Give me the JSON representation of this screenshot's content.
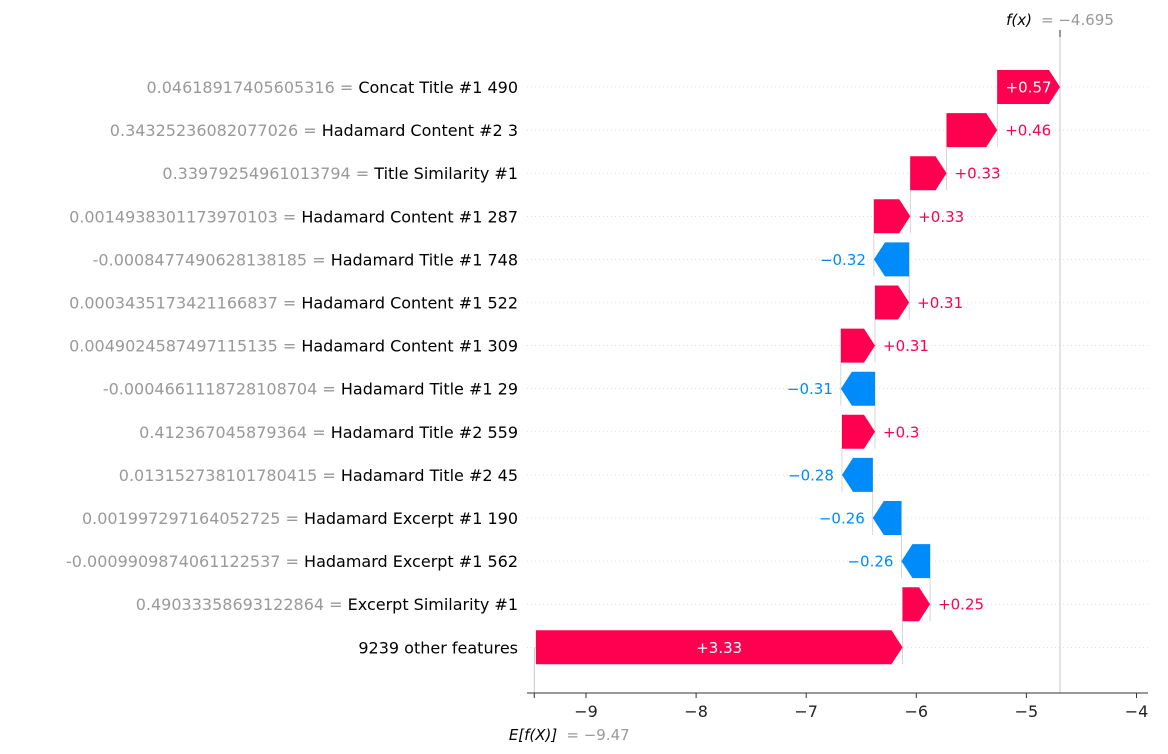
{
  "chart_data": {
    "type": "waterfall",
    "base_value": -9.47,
    "base_value_label": "= −9.47",
    "base_value_prefix": "E[f(X)]",
    "output_value": -4.695,
    "output_value_label": "= −4.695",
    "output_value_prefix": "f(x)",
    "xlim": [
      -9.5,
      -3.9
    ],
    "xticks": [
      -9,
      -8,
      -7,
      -6,
      -5,
      -4
    ],
    "xtick_labels": [
      "−9",
      "−8",
      "−7",
      "−6",
      "−5",
      "−4"
    ],
    "colors": {
      "positive": "#ff0051",
      "negative": "#008bfb"
    },
    "features": [
      {
        "value_text": "0.04618917405605316 =",
        "name": "Concat Title #1 490",
        "contribution": 0.57,
        "label": "+0.57"
      },
      {
        "value_text": "0.34325236082077026 =",
        "name": "Hadamard Content #2 3",
        "contribution": 0.46,
        "label": "+0.46"
      },
      {
        "value_text": "0.33979254961013794 =",
        "name": "Title Similarity #1",
        "contribution": 0.33,
        "label": "+0.33"
      },
      {
        "value_text": "0.0014938301173970103 =",
        "name": "Hadamard Content #1 287",
        "contribution": 0.33,
        "label": "+0.33"
      },
      {
        "value_text": "-0.0008477490628138185 =",
        "name": "Hadamard Title #1 748",
        "contribution": -0.32,
        "label": "−0.32"
      },
      {
        "value_text": "0.0003435173421166837 =",
        "name": "Hadamard Content #1 522",
        "contribution": 0.31,
        "label": "+0.31"
      },
      {
        "value_text": "0.0049024587497115135 =",
        "name": "Hadamard Content #1 309",
        "contribution": 0.31,
        "label": "+0.31"
      },
      {
        "value_text": "-0.0004661118728108704 =",
        "name": "Hadamard Title #1 29",
        "contribution": -0.31,
        "label": "−0.31"
      },
      {
        "value_text": "0.412367045879364 =",
        "name": "Hadamard Title #2 559",
        "contribution": 0.3,
        "label": "+0.3"
      },
      {
        "value_text": "0.013152738101780415 =",
        "name": "Hadamard Title #2 45",
        "contribution": -0.28,
        "label": "−0.28"
      },
      {
        "value_text": "0.001997297164052725 =",
        "name": "Hadamard Excerpt #1 190",
        "contribution": -0.26,
        "label": "−0.26"
      },
      {
        "value_text": "-0.0009909874061122537 =",
        "name": "Hadamard Excerpt #1 562",
        "contribution": -0.26,
        "label": "−0.26"
      },
      {
        "value_text": "0.49033358693122864 =",
        "name": "Excerpt Similarity #1",
        "contribution": 0.25,
        "label": "+0.25"
      },
      {
        "value_text": "",
        "name": "9239 other features",
        "contribution": 3.33,
        "label": "+3.33"
      }
    ]
  }
}
